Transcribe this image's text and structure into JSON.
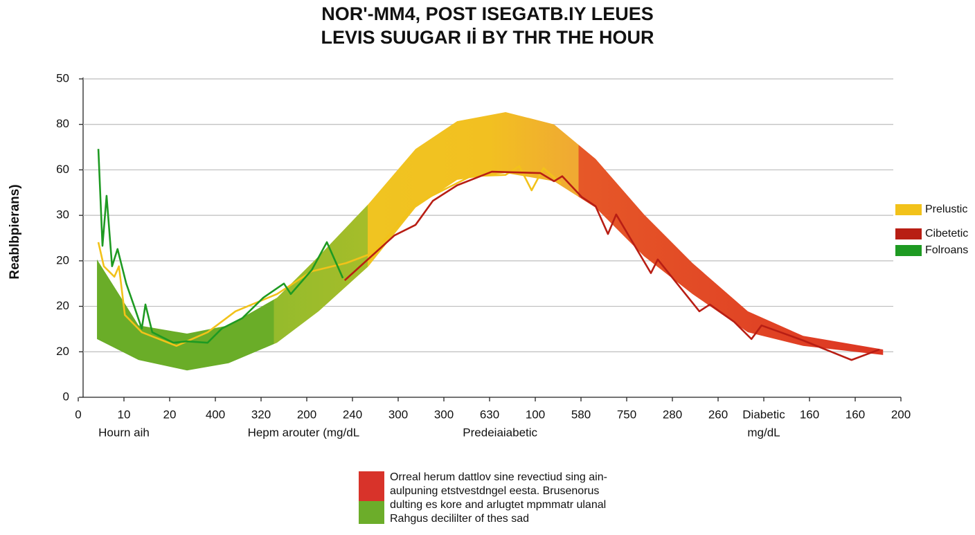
{
  "chart_data": {
    "type": "line",
    "title": [
      "NOR'-MM4, POST ISEGATB.IY LEUES",
      "LEVIS SUUGAR Iİ BY THR THE HOUR"
    ],
    "y_label": "Reablbpierans)",
    "xlim": [
      0,
      18
    ],
    "xticks": [
      {
        "value": 0,
        "label": "0"
      },
      {
        "value": 1,
        "label": "10"
      },
      {
        "value": 2,
        "label": "20"
      },
      {
        "value": 3,
        "label": "400"
      },
      {
        "value": 4,
        "label": "320"
      },
      {
        "value": 5,
        "label": "200"
      },
      {
        "value": 6,
        "label": "240"
      },
      {
        "value": 7,
        "label": "300"
      },
      {
        "value": 8,
        "label": "300"
      },
      {
        "value": 9,
        "label": "630"
      },
      {
        "value": 10,
        "label": "100"
      },
      {
        "value": 11,
        "label": "580"
      },
      {
        "value": 12,
        "label": "750"
      },
      {
        "value": 13,
        "label": "280"
      },
      {
        "value": 14,
        "label": "260"
      },
      {
        "value": 15,
        "label": "Diabetic"
      },
      {
        "value": 16,
        "label": "160"
      },
      {
        "value": 17,
        "label": "160"
      },
      {
        "value": 18,
        "label": "200"
      }
    ],
    "x_annotations": [
      {
        "x": 1,
        "text": "Hourn aih"
      },
      {
        "x": 4.93,
        "text": "Hepm arouter (mg/dL"
      },
      {
        "x": 9.23,
        "text": "Predeiaiabetic"
      },
      {
        "x": 15,
        "text": "mg/dL"
      }
    ],
    "ylim": [
      0,
      7
    ],
    "yticks": [
      {
        "value": 0,
        "label": "0"
      },
      {
        "value": 1,
        "label": "20"
      },
      {
        "value": 2,
        "label": "20"
      },
      {
        "value": 3,
        "label": "20"
      },
      {
        "value": 4,
        "label": "30"
      },
      {
        "value": 5,
        "label": "60"
      },
      {
        "value": 6,
        "label": "80"
      },
      {
        "value": 7,
        "label": "50"
      }
    ],
    "grid": true,
    "band": {
      "x": [
        0.41,
        1.32,
        2.38,
        3.29,
        4.35,
        5.26,
        6.35,
        7.38,
        8.29,
        9.35,
        10.41,
        11.32,
        12.38,
        13.44,
        14.65,
        15.86,
        17.61
      ],
      "upper": [
        3.03,
        1.58,
        1.4,
        1.58,
        2.19,
        3.1,
        4.25,
        5.46,
        6.07,
        6.27,
        6.0,
        5.24,
        4.02,
        2.95,
        1.89,
        1.35,
        1.05
      ],
      "lower": [
        1.28,
        0.82,
        0.59,
        0.75,
        1.2,
        1.89,
        2.88,
        4.17,
        4.78,
        4.93,
        4.75,
        4.17,
        3.1,
        2.27,
        1.43,
        1.13,
        0.93
      ]
    },
    "legend_position": "right",
    "series": [
      {
        "name": "Prelustic",
        "color": "#f2c21a",
        "x": [
          0.44,
          0.56,
          0.79,
          0.89,
          1.02,
          1.39,
          2.15,
          2.83,
          3.44,
          4.35,
          5.11,
          5.86,
          6.47,
          7.38,
          8.59,
          9.35,
          9.65,
          9.92,
          10.18,
          10.56
        ],
        "values": [
          3.41,
          2.88,
          2.65,
          2.88,
          1.81,
          1.43,
          1.13,
          1.43,
          1.89,
          2.27,
          2.77,
          2.95,
          3.18,
          4.25,
          4.86,
          4.89,
          5.08,
          4.55,
          5.04,
          4.7
        ]
      },
      {
        "name": "Cibetetic",
        "color": "#b81e14",
        "x": [
          5.83,
          6.17,
          6.92,
          7.38,
          7.76,
          8.29,
          9.05,
          10.11,
          10.41,
          10.59,
          11.02,
          11.32,
          11.59,
          11.77,
          12.53,
          12.68,
          13.59,
          13.82,
          14.35,
          14.73,
          14.95,
          15.86,
          16.92,
          17.53
        ],
        "values": [
          2.57,
          2.88,
          3.56,
          3.79,
          4.32,
          4.66,
          4.96,
          4.93,
          4.75,
          4.86,
          4.4,
          4.2,
          3.59,
          4.02,
          2.73,
          3.03,
          1.89,
          2.04,
          1.66,
          1.28,
          1.58,
          1.25,
          0.82,
          1.05
        ]
      },
      {
        "name": "Folroans",
        "color": "#1e9a22",
        "x": [
          0.44,
          0.53,
          0.62,
          0.74,
          0.86,
          1.05,
          1.21,
          1.39,
          1.47,
          1.62,
          2.08,
          2.38,
          2.83,
          3.14,
          3.59,
          4.05,
          4.5,
          4.65,
          5.11,
          5.44,
          5.79
        ],
        "values": [
          5.46,
          3.33,
          4.43,
          2.88,
          3.26,
          2.5,
          2.04,
          1.51,
          2.04,
          1.43,
          1.2,
          1.23,
          1.2,
          1.51,
          1.74,
          2.19,
          2.5,
          2.27,
          2.8,
          3.41,
          2.62
        ]
      }
    ],
    "note": [
      "Orreal herum dattlov sine revectiud sing ain-",
      "aulpuning etstvestdngel eesta. Brusenorus",
      "dulting es kore and arlugtet mpmmatr ulanal",
      "Rahgus decililter of thes sad"
    ]
  }
}
